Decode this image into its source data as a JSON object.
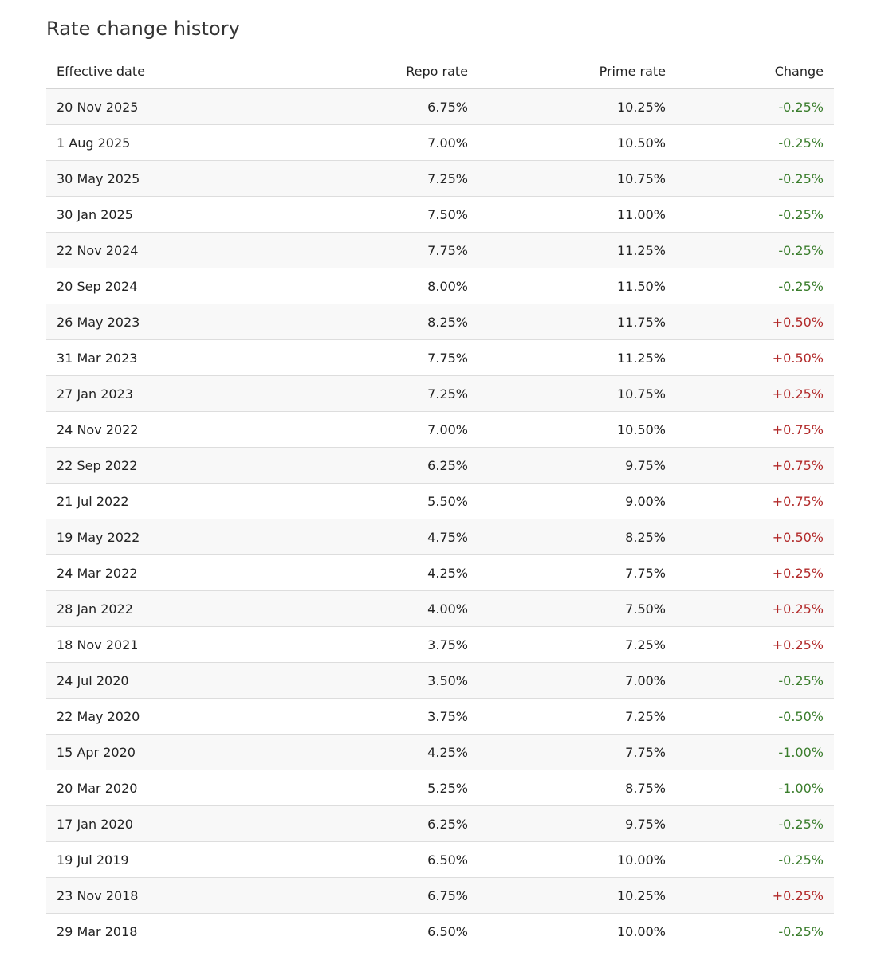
{
  "section": {
    "title": "Rate change history"
  },
  "colors": {
    "decrease": "#3a7d2c",
    "increase": "#b22a2a",
    "stripe": "#f8f8f8"
  },
  "table": {
    "headers": {
      "date": "Effective date",
      "repo": "Repo rate",
      "prime": "Prime rate",
      "change": "Change"
    },
    "rows": [
      {
        "date": "20 Nov 2025",
        "repo": "6.75%",
        "prime": "10.25%",
        "change": "-0.25%",
        "direction": "down"
      },
      {
        "date": "1 Aug 2025",
        "repo": "7.00%",
        "prime": "10.50%",
        "change": "-0.25%",
        "direction": "down"
      },
      {
        "date": "30 May 2025",
        "repo": "7.25%",
        "prime": "10.75%",
        "change": "-0.25%",
        "direction": "down"
      },
      {
        "date": "30 Jan 2025",
        "repo": "7.50%",
        "prime": "11.00%",
        "change": "-0.25%",
        "direction": "down"
      },
      {
        "date": "22 Nov 2024",
        "repo": "7.75%",
        "prime": "11.25%",
        "change": "-0.25%",
        "direction": "down"
      },
      {
        "date": "20 Sep 2024",
        "repo": "8.00%",
        "prime": "11.50%",
        "change": "-0.25%",
        "direction": "down"
      },
      {
        "date": "26 May 2023",
        "repo": "8.25%",
        "prime": "11.75%",
        "change": "+0.50%",
        "direction": "up"
      },
      {
        "date": "31 Mar 2023",
        "repo": "7.75%",
        "prime": "11.25%",
        "change": "+0.50%",
        "direction": "up"
      },
      {
        "date": "27 Jan 2023",
        "repo": "7.25%",
        "prime": "10.75%",
        "change": "+0.25%",
        "direction": "up"
      },
      {
        "date": "24 Nov 2022",
        "repo": "7.00%",
        "prime": "10.50%",
        "change": "+0.75%",
        "direction": "up"
      },
      {
        "date": "22 Sep 2022",
        "repo": "6.25%",
        "prime": "9.75%",
        "change": "+0.75%",
        "direction": "up"
      },
      {
        "date": "21 Jul 2022",
        "repo": "5.50%",
        "prime": "9.00%",
        "change": "+0.75%",
        "direction": "up"
      },
      {
        "date": "19 May 2022",
        "repo": "4.75%",
        "prime": "8.25%",
        "change": "+0.50%",
        "direction": "up"
      },
      {
        "date": "24 Mar 2022",
        "repo": "4.25%",
        "prime": "7.75%",
        "change": "+0.25%",
        "direction": "up"
      },
      {
        "date": "28 Jan 2022",
        "repo": "4.00%",
        "prime": "7.50%",
        "change": "+0.25%",
        "direction": "up"
      },
      {
        "date": "18 Nov 2021",
        "repo": "3.75%",
        "prime": "7.25%",
        "change": "+0.25%",
        "direction": "up"
      },
      {
        "date": "24 Jul 2020",
        "repo": "3.50%",
        "prime": "7.00%",
        "change": "-0.25%",
        "direction": "down"
      },
      {
        "date": "22 May 2020",
        "repo": "3.75%",
        "prime": "7.25%",
        "change": "-0.50%",
        "direction": "down"
      },
      {
        "date": "15 Apr 2020",
        "repo": "4.25%",
        "prime": "7.75%",
        "change": "-1.00%",
        "direction": "down"
      },
      {
        "date": "20 Mar 2020",
        "repo": "5.25%",
        "prime": "8.75%",
        "change": "-1.00%",
        "direction": "down"
      },
      {
        "date": "17 Jan 2020",
        "repo": "6.25%",
        "prime": "9.75%",
        "change": "-0.25%",
        "direction": "down"
      },
      {
        "date": "19 Jul 2019",
        "repo": "6.50%",
        "prime": "10.00%",
        "change": "-0.25%",
        "direction": "down"
      },
      {
        "date": "23 Nov 2018",
        "repo": "6.75%",
        "prime": "10.25%",
        "change": "+0.25%",
        "direction": "up"
      },
      {
        "date": "29 Mar 2018",
        "repo": "6.50%",
        "prime": "10.00%",
        "change": "-0.25%",
        "direction": "down"
      }
    ]
  }
}
